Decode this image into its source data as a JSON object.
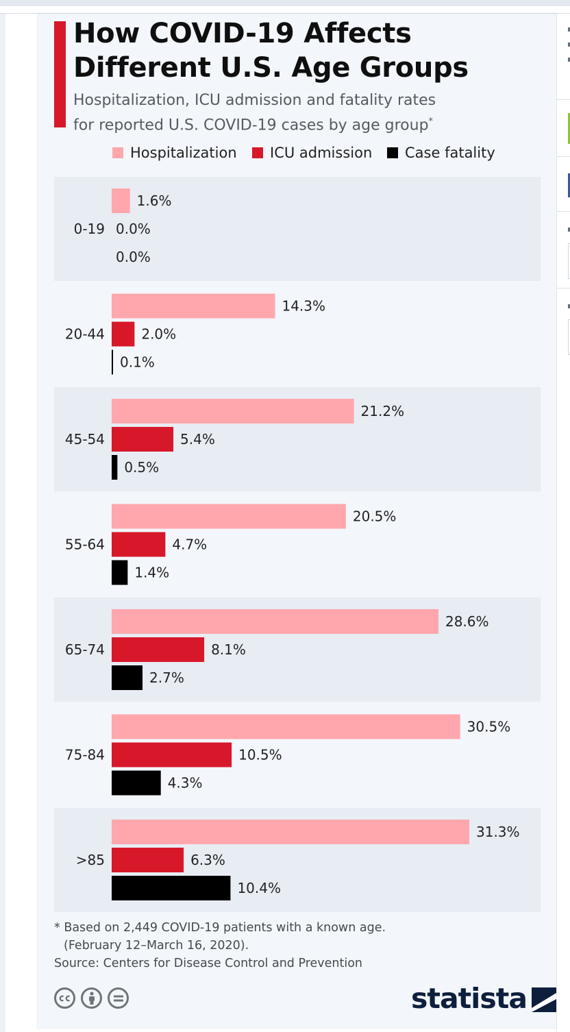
{
  "header": {
    "title_line1": "How COVID-19 Affects",
    "title_line2": "Different U.S. Age Groups",
    "subtitle_line1": "Hospitalization, ICU admission and fatality rates",
    "subtitle_line2": "for reported U.S. COVID-19 cases by age group",
    "subtitle_mark": "*"
  },
  "legend": [
    {
      "label": "Hospitalization",
      "color": "#ffa7ad"
    },
    {
      "label": "ICU admission",
      "color": "#d7182a"
    },
    {
      "label": "Case fatality",
      "color": "#000000"
    }
  ],
  "chart_data": {
    "type": "bar",
    "orientation": "horizontal",
    "categories": [
      "0-19",
      "20-44",
      "45-54",
      "55-64",
      "65-74",
      "75-84",
      ">85"
    ],
    "series": [
      {
        "name": "Hospitalization",
        "color": "#ffa7ad",
        "values": [
          1.6,
          14.3,
          21.2,
          20.5,
          28.6,
          30.5,
          31.3
        ]
      },
      {
        "name": "ICU admission",
        "color": "#d7182a",
        "values": [
          0.0,
          2.0,
          5.4,
          4.7,
          8.1,
          10.5,
          6.3
        ]
      },
      {
        "name": "Case fatality",
        "color": "#000000",
        "values": [
          0.0,
          0.1,
          0.5,
          1.4,
          2.7,
          4.3,
          10.4
        ]
      }
    ],
    "value_suffix": "%",
    "label_colors": {
      "zero_icu": "#d7182a"
    },
    "xlim": [
      0,
      35
    ],
    "grid": false,
    "legend_position": "top"
  },
  "footnote": {
    "line1": "* Based on 2,449 COVID-19 patients with a known age.",
    "line2": "(February 12–March 16, 2020).",
    "source": "Source: Centers for Disease Control and Prevention"
  },
  "footer": {
    "brand": "statista",
    "icons": [
      "creative-commons-icon",
      "attribution-icon",
      "no-derivatives-icon"
    ]
  }
}
